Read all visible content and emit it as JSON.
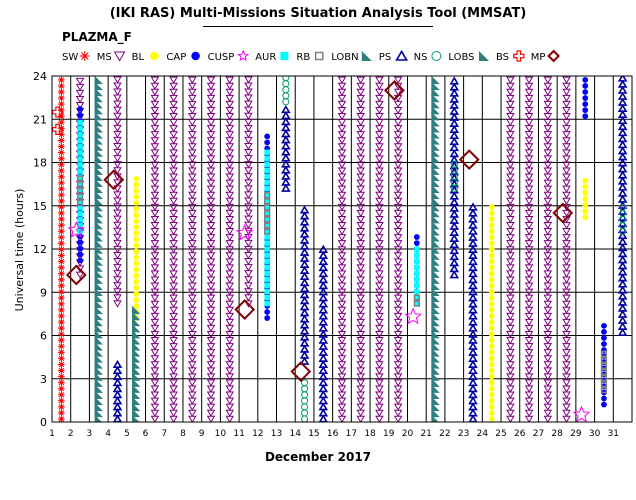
{
  "title": "(IKI RAS) Multi-Missions Situation Analysis Tool (MMSAT)",
  "mission": "PLAZMA_F",
  "chart_data": {
    "type": "scatter",
    "xlabel": "December 2017",
    "ylabel": "Universal time (hours)",
    "xlim": [
      1,
      32
    ],
    "ylim": [
      0,
      24
    ],
    "x_ticks": [
      1,
      2,
      3,
      4,
      5,
      6,
      7,
      8,
      9,
      10,
      11,
      12,
      13,
      14,
      15,
      16,
      17,
      18,
      19,
      20,
      21,
      22,
      23,
      24,
      25,
      26,
      27,
      28,
      29,
      30,
      31
    ],
    "y_ticks": [
      0,
      3,
      6,
      9,
      12,
      15,
      18,
      21,
      24
    ],
    "grid": true,
    "legend_position": "top",
    "legend": [
      {
        "key": "SW",
        "label": "SW",
        "color": "#ff0000",
        "symbol": "asterisk"
      },
      {
        "key": "MS",
        "label": "MS",
        "color": "#800080",
        "symbol": "triangle-down"
      },
      {
        "key": "BL",
        "label": "BL",
        "color": "#ffff00",
        "symbol": "circle-fill"
      },
      {
        "key": "CAP",
        "label": "CAP",
        "color": "#0000ff",
        "symbol": "circle-fill"
      },
      {
        "key": "CUSP",
        "label": "CUSP",
        "color": "#ff00ff",
        "symbol": "star"
      },
      {
        "key": "AUR",
        "label": "AUR",
        "color": "#00ffff",
        "symbol": "square-fill"
      },
      {
        "key": "RB",
        "label": "RB",
        "color": "#808080",
        "symbol": "square-open"
      },
      {
        "key": "LOBN",
        "label": "LOBN",
        "color": "#2f7f7f",
        "symbol": "wedge"
      },
      {
        "key": "PS",
        "label": "PS",
        "color": "#0000a0",
        "symbol": "triangle-up"
      },
      {
        "key": "NS",
        "label": "NS",
        "color": "#009966",
        "symbol": "circle-open"
      },
      {
        "key": "LOBS",
        "label": "LOBS",
        "color": "#2f7f7f",
        "symbol": "wedge"
      },
      {
        "key": "BS",
        "label": "BS",
        "color": "#ff0000",
        "symbol": "plus"
      },
      {
        "key": "MP",
        "label": "MP",
        "color": "#800000",
        "symbol": "diamond"
      }
    ],
    "orbit_segments": [
      {
        "day": 1,
        "type": "SW",
        "from": 0,
        "to": 24
      },
      {
        "day": 2,
        "type": "MS",
        "from": 10,
        "to": 24
      },
      {
        "day": 2,
        "type": "CAP",
        "from": 11,
        "to": 22
      },
      {
        "day": 2,
        "type": "AUR",
        "from": 13,
        "to": 21
      },
      {
        "day": 2,
        "type": "RB",
        "from": 15,
        "to": 17
      },
      {
        "day": 3,
        "type": "LOBN",
        "from": 0,
        "to": 24
      },
      {
        "day": 4,
        "type": "MS",
        "from": 8,
        "to": 24
      },
      {
        "day": 4,
        "type": "PS",
        "from": 0,
        "to": 4
      },
      {
        "day": 5,
        "type": "BL",
        "from": 7,
        "to": 17
      },
      {
        "day": 5,
        "type": "LOBN",
        "from": 0,
        "to": 8
      },
      {
        "day": 6,
        "type": "MS",
        "from": 0,
        "to": 24
      },
      {
        "day": 7,
        "type": "MS",
        "from": 0,
        "to": 24
      },
      {
        "day": 8,
        "type": "MS",
        "from": 0,
        "to": 24
      },
      {
        "day": 9,
        "type": "MS",
        "from": 0,
        "to": 24
      },
      {
        "day": 10,
        "type": "MS",
        "from": 0,
        "to": 24
      },
      {
        "day": 11,
        "type": "MS",
        "from": 8,
        "to": 24
      },
      {
        "day": 12,
        "type": "CAP",
        "from": 7,
        "to": 20
      },
      {
        "day": 12,
        "type": "AUR",
        "from": 8,
        "to": 19
      },
      {
        "day": 12,
        "type": "RB",
        "from": 13,
        "to": 16
      },
      {
        "day": 13,
        "type": "PS",
        "from": 16,
        "to": 22
      },
      {
        "day": 13,
        "type": "NS",
        "from": 22,
        "to": 24
      },
      {
        "day": 14,
        "type": "PS",
        "from": 4,
        "to": 15
      },
      {
        "day": 14,
        "type": "NS",
        "from": 0,
        "to": 3
      },
      {
        "day": 15,
        "type": "PS",
        "from": 0,
        "to": 12
      },
      {
        "day": 16,
        "type": "MS",
        "from": 0,
        "to": 24
      },
      {
        "day": 17,
        "type": "MS",
        "from": 0,
        "to": 24
      },
      {
        "day": 18,
        "type": "MS",
        "from": 0,
        "to": 24
      },
      {
        "day": 19,
        "type": "MS",
        "from": 0,
        "to": 24
      },
      {
        "day": 20,
        "type": "CAP",
        "from": 8,
        "to": 13
      },
      {
        "day": 20,
        "type": "AUR",
        "from": 8,
        "to": 12
      },
      {
        "day": 20,
        "type": "RB",
        "from": 8,
        "to": 9
      },
      {
        "day": 21,
        "type": "LOBS",
        "from": 0,
        "to": 24
      },
      {
        "day": 22,
        "type": "PS",
        "from": 10,
        "to": 24
      },
      {
        "day": 22,
        "type": "NS",
        "from": 16,
        "to": 18
      },
      {
        "day": 23,
        "type": "PS",
        "from": 0,
        "to": 15
      },
      {
        "day": 24,
        "type": "BL",
        "from": 0,
        "to": 15
      },
      {
        "day": 25,
        "type": "MS",
        "from": 0,
        "to": 24
      },
      {
        "day": 26,
        "type": "MS",
        "from": 0,
        "to": 24
      },
      {
        "day": 27,
        "type": "MS",
        "from": 0,
        "to": 24
      },
      {
        "day": 28,
        "type": "MS",
        "from": 0,
        "to": 24
      },
      {
        "day": 29,
        "type": "BL",
        "from": 14,
        "to": 17
      },
      {
        "day": 29,
        "type": "CAP",
        "from": 21,
        "to": 24
      },
      {
        "day": 30,
        "type": "CAP",
        "from": 1,
        "to": 7
      },
      {
        "day": 30,
        "type": "RB",
        "from": 2,
        "to": 5
      },
      {
        "day": 31,
        "type": "PS",
        "from": 6,
        "to": 24
      },
      {
        "day": 31,
        "type": "NS",
        "from": 13,
        "to": 15
      }
    ],
    "boundary_events": [
      {
        "type": "MP",
        "day": 2.3,
        "time": 10.2
      },
      {
        "type": "MP",
        "day": 4.3,
        "time": 16.8
      },
      {
        "type": "MP",
        "day": 11.3,
        "time": 7.8
      },
      {
        "type": "MP",
        "day": 14.3,
        "time": 3.5
      },
      {
        "type": "MP",
        "day": 19.3,
        "time": 23.0
      },
      {
        "type": "MP",
        "day": 23.3,
        "time": 18.2
      },
      {
        "type": "MP",
        "day": 28.3,
        "time": 14.5
      },
      {
        "type": "CUSP",
        "day": 2.3,
        "time": 13.3
      },
      {
        "type": "CUSP",
        "day": 11.3,
        "time": 13.1
      },
      {
        "type": "CUSP",
        "day": 20.3,
        "time": 7.3
      },
      {
        "type": "CUSP",
        "day": 29.3,
        "time": 0.5
      },
      {
        "type": "BS",
        "day": 1.3,
        "time": 20.3
      },
      {
        "type": "BS",
        "day": 1.3,
        "time": 21.5
      }
    ]
  }
}
